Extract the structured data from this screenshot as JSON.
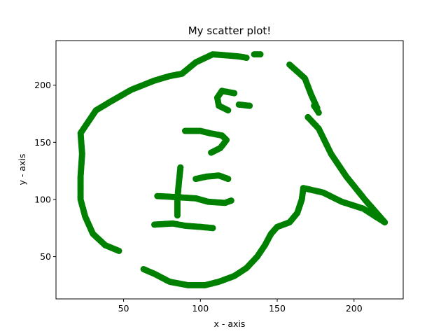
{
  "chart_data": {
    "type": "scatter",
    "title": "My scatter plot!",
    "xlabel": "x - axis",
    "ylabel": "y - axis",
    "xlim": [
      6,
      232
    ],
    "ylim": [
      13,
      239
    ],
    "xticks": [
      50,
      100,
      150,
      200
    ],
    "yticks": [
      50,
      100,
      150,
      200
    ],
    "grid": false,
    "legend": "none",
    "marker_color": "#008000",
    "series": [
      {
        "name": "",
        "strokes": [
          [
            [
              47,
              55
            ],
            [
              38,
              60
            ],
            [
              30,
              70
            ],
            [
              25,
              85
            ],
            [
              22,
              100
            ],
            [
              22,
              120
            ],
            [
              23,
              140
            ],
            [
              22,
              158
            ],
            [
              27,
              168
            ],
            [
              32,
              178
            ],
            [
              42,
              186
            ],
            [
              55,
              196
            ],
            [
              70,
              204
            ],
            [
              80,
              208
            ],
            [
              88,
              210
            ],
            [
              97,
              220
            ],
            [
              108,
              227
            ],
            [
              118,
              226
            ],
            [
              126,
              225
            ],
            [
              130,
              224
            ]
          ],
          [
            [
              135,
              227
            ],
            [
              139,
              227
            ]
          ],
          [
            [
              63,
              39
            ],
            [
              70,
              35
            ],
            [
              80,
              28
            ],
            [
              92,
              25
            ],
            [
              103,
              25
            ],
            [
              112,
              28
            ],
            [
              122,
              33
            ],
            [
              130,
              40
            ],
            [
              137,
              50
            ],
            [
              142,
              60
            ],
            [
              146,
              70
            ],
            [
              150,
              76
            ],
            [
              158,
              80
            ],
            [
              163,
              88
            ],
            [
              166,
              100
            ],
            [
              167,
              110
            ],
            [
              180,
              106
            ],
            [
              192,
              98
            ],
            [
              206,
              92
            ],
            [
              220,
              80
            ],
            [
              207,
              100
            ],
            [
              195,
              120
            ],
            [
              185,
              140
            ],
            [
              177,
              162
            ],
            [
              170,
              172
            ]
          ],
          [
            [
              174,
              182
            ],
            [
              177,
              176
            ]
          ],
          [
            [
              158,
              218
            ],
            [
              168,
              206
            ],
            [
              172,
              192
            ],
            [
              176,
              180
            ]
          ],
          [
            [
              70,
              78
            ],
            [
              82,
              79
            ],
            [
              90,
              77
            ],
            [
              100,
              76
            ],
            [
              108,
              75
            ]
          ],
          [
            [
              85,
              86
            ],
            [
              85,
              100
            ],
            [
              86,
              115
            ],
            [
              87,
              128
            ]
          ],
          [
            [
              72,
              103
            ],
            [
              85,
              102
            ],
            [
              97,
              101
            ],
            [
              105,
              98
            ],
            [
              116,
              97
            ],
            [
              120,
              99
            ]
          ],
          [
            [
              97,
              118
            ],
            [
              104,
              120
            ],
            [
              112,
              121
            ],
            [
              118,
              118
            ]
          ],
          [
            [
              90,
              160
            ],
            [
              100,
              160
            ],
            [
              106,
              158
            ],
            [
              114,
              156
            ],
            [
              117,
              152
            ],
            [
              113,
              145
            ],
            [
              107,
              141
            ]
          ],
          [
            [
              118,
              178
            ],
            [
              112,
              182
            ],
            [
              111,
              189
            ],
            [
              114,
              195
            ],
            [
              122,
              193
            ]
          ],
          [
            [
              125,
              183
            ],
            [
              132,
              182
            ]
          ]
        ]
      }
    ]
  }
}
